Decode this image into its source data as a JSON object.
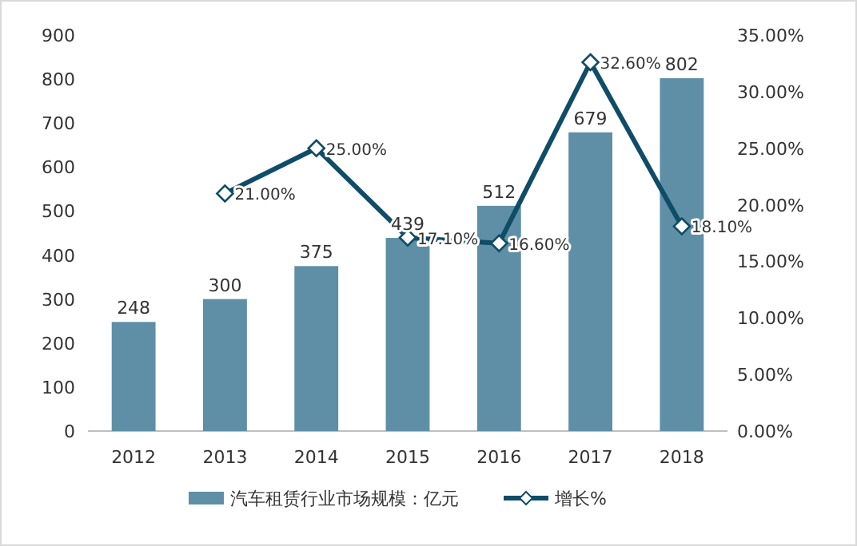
{
  "chart_data": {
    "type": "bar",
    "categories": [
      "2012",
      "2013",
      "2014",
      "2015",
      "2016",
      "2017",
      "2018"
    ],
    "series": [
      {
        "name": "汽车租赁行业市场规模：亿元",
        "color": "#5f8fa6",
        "values": [
          248,
          300,
          375,
          439,
          512,
          679,
          802
        ],
        "value_labels": [
          "248",
          "300",
          "375",
          "439",
          "512",
          "679",
          "802"
        ]
      },
      {
        "name": "增长%",
        "type": "line",
        "axis": "y2",
        "color": "#0f4c68",
        "marker": "diamond",
        "values": [
          null,
          21.0,
          25.0,
          17.1,
          16.6,
          32.6,
          18.1
        ],
        "value_labels": [
          null,
          "21.00%",
          "25.00%",
          "17.10%",
          "16.60%",
          "32.60%",
          "18.10%"
        ]
      }
    ],
    "ylim": [
      0,
      900
    ],
    "yticks": [
      0,
      100,
      200,
      300,
      400,
      500,
      600,
      700,
      800,
      900
    ],
    "y2lim": [
      0,
      35
    ],
    "y2ticks": [
      {
        "value": 0,
        "label": "0.00%"
      },
      {
        "value": 5,
        "label": "5.00%"
      },
      {
        "value": 10,
        "label": "10.00%"
      },
      {
        "value": 15,
        "label": "15.00%"
      },
      {
        "value": 20,
        "label": "20.00%"
      },
      {
        "value": 25,
        "label": "25.00%"
      },
      {
        "value": 30,
        "label": "30.00%"
      },
      {
        "value": 35,
        "label": "35.00%"
      }
    ],
    "legend": "bottom"
  }
}
